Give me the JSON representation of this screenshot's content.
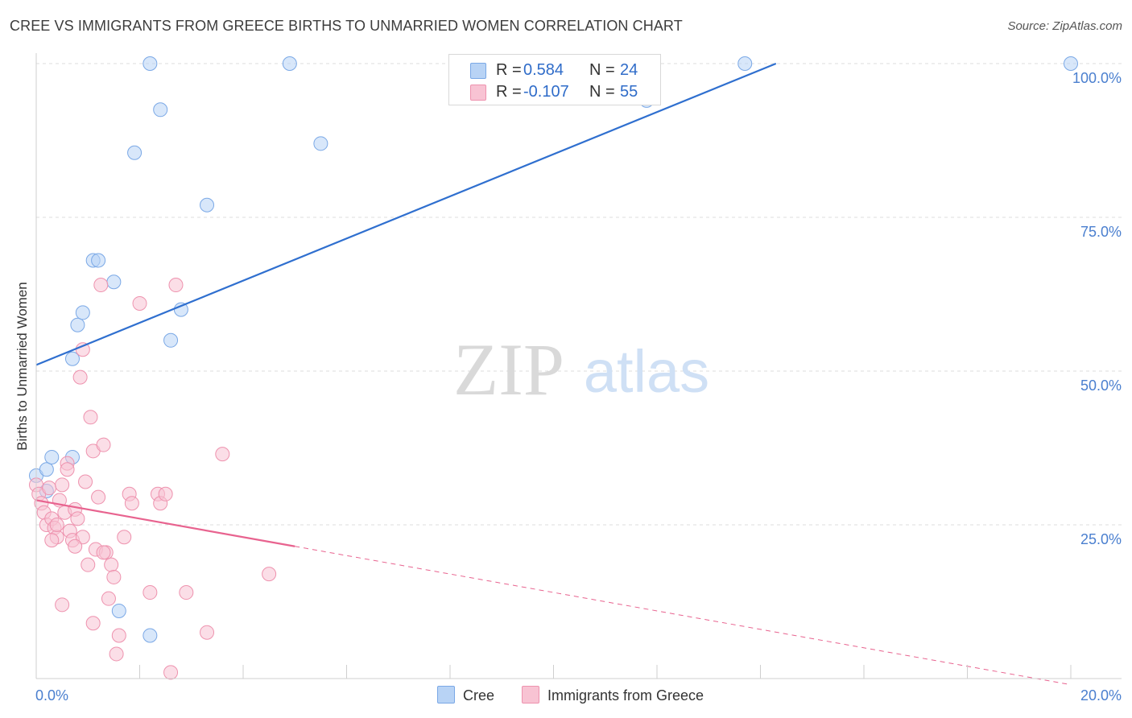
{
  "title": "CREE VS IMMIGRANTS FROM GREECE BIRTHS TO UNMARRIED WOMEN CORRELATION CHART",
  "source": "Source: ZipAtlas.com",
  "watermark": {
    "zip": "ZIP",
    "atlas": "atlas"
  },
  "legend": {
    "cree": {
      "r_label": "R =",
      "r_value": "0.584",
      "n_label": "N =",
      "n_value": "24"
    },
    "greece": {
      "r_label": "R =",
      "r_value": "-0.107",
      "n_label": "N =",
      "n_value": "55"
    }
  },
  "bottom_legend": {
    "cree": "Cree",
    "greece": "Immigrants from Greece"
  },
  "colors": {
    "cree_fill": "#b8d3f5",
    "cree_stroke": "#7aa8e6",
    "cree_line": "#2f6fcf",
    "greece_fill": "#f8c3d3",
    "greece_stroke": "#ee92ae",
    "greece_line": "#e8638f",
    "tick_text": "#4a7fcf",
    "grid": "#dcdcdc"
  },
  "chart_data": {
    "type": "scatter",
    "xlabel": "",
    "ylabel": "Births to Unmarried Women",
    "xlim": [
      0,
      20
    ],
    "ylim": [
      0,
      100
    ],
    "x_tick_labels": {
      "min": "0.0%",
      "max": "20.0%"
    },
    "y_ticks": [
      {
        "value": 25,
        "label": "25.0%"
      },
      {
        "value": 50,
        "label": "50.0%"
      },
      {
        "value": 75,
        "label": "75.0%"
      },
      {
        "value": 100,
        "label": "100.0%"
      }
    ],
    "series": [
      {
        "name": "Cree",
        "color_key": "cree",
        "points": [
          [
            0.0,
            33.0
          ],
          [
            0.2,
            34.0
          ],
          [
            0.3,
            36.0
          ],
          [
            0.2,
            30.5
          ],
          [
            0.7,
            36.0
          ],
          [
            0.7,
            52.0
          ],
          [
            0.8,
            57.5
          ],
          [
            0.9,
            59.5
          ],
          [
            1.1,
            68.0
          ],
          [
            1.2,
            68.0
          ],
          [
            1.5,
            64.5
          ],
          [
            1.9,
            85.5
          ],
          [
            2.2,
            100.0
          ],
          [
            2.4,
            92.5
          ],
          [
            2.6,
            55.0
          ],
          [
            2.8,
            60.0
          ],
          [
            3.3,
            77.0
          ],
          [
            4.9,
            100.0
          ],
          [
            5.5,
            87.0
          ],
          [
            11.8,
            94.0
          ],
          [
            13.7,
            100.0
          ],
          [
            20.0,
            100.0
          ],
          [
            1.6,
            11.0
          ],
          [
            2.2,
            7.0
          ]
        ],
        "trend": {
          "x0": 0.0,
          "y0": 51.0,
          "x1": 14.3,
          "y1": 100.0,
          "dashed_to": null
        }
      },
      {
        "name": "Immigrants from Greece",
        "color_key": "greece",
        "points": [
          [
            0.0,
            31.5
          ],
          [
            0.05,
            30.0
          ],
          [
            0.1,
            28.5
          ],
          [
            0.15,
            27.0
          ],
          [
            0.2,
            25.0
          ],
          [
            0.25,
            31.0
          ],
          [
            0.3,
            26.0
          ],
          [
            0.35,
            24.5
          ],
          [
            0.4,
            23.0
          ],
          [
            0.45,
            29.0
          ],
          [
            0.5,
            31.5
          ],
          [
            0.55,
            27.0
          ],
          [
            0.6,
            35.0
          ],
          [
            0.65,
            24.0
          ],
          [
            0.7,
            22.5
          ],
          [
            0.75,
            27.5
          ],
          [
            0.8,
            26.0
          ],
          [
            0.85,
            49.0
          ],
          [
            0.9,
            53.5
          ],
          [
            0.95,
            32.0
          ],
          [
            1.0,
            18.5
          ],
          [
            1.05,
            42.5
          ],
          [
            1.1,
            37.0
          ],
          [
            1.15,
            21.0
          ],
          [
            1.2,
            29.5
          ],
          [
            1.25,
            64.0
          ],
          [
            1.3,
            38.0
          ],
          [
            1.35,
            20.5
          ],
          [
            1.4,
            13.0
          ],
          [
            1.45,
            18.5
          ],
          [
            1.5,
            16.5
          ],
          [
            1.6,
            7.0
          ],
          [
            1.7,
            23.0
          ],
          [
            1.8,
            30.0
          ],
          [
            1.85,
            28.5
          ],
          [
            2.0,
            61.0
          ],
          [
            2.2,
            14.0
          ],
          [
            2.35,
            30.0
          ],
          [
            2.4,
            28.5
          ],
          [
            2.5,
            30.0
          ],
          [
            2.6,
            1.0
          ],
          [
            2.7,
            64.0
          ],
          [
            2.9,
            14.0
          ],
          [
            3.3,
            7.5
          ],
          [
            3.6,
            36.5
          ],
          [
            4.5,
            17.0
          ],
          [
            0.5,
            12.0
          ],
          [
            1.1,
            9.0
          ],
          [
            1.55,
            4.0
          ],
          [
            0.3,
            22.5
          ],
          [
            0.6,
            34.0
          ],
          [
            0.4,
            25.0
          ],
          [
            0.9,
            23.0
          ],
          [
            0.75,
            21.5
          ],
          [
            1.3,
            20.5
          ]
        ],
        "trend": {
          "x0": 0.0,
          "y0": 29.0,
          "x1": 5.0,
          "y1": 21.5,
          "dashed_to": {
            "x": 20.0,
            "y": -1.0
          }
        }
      }
    ]
  }
}
